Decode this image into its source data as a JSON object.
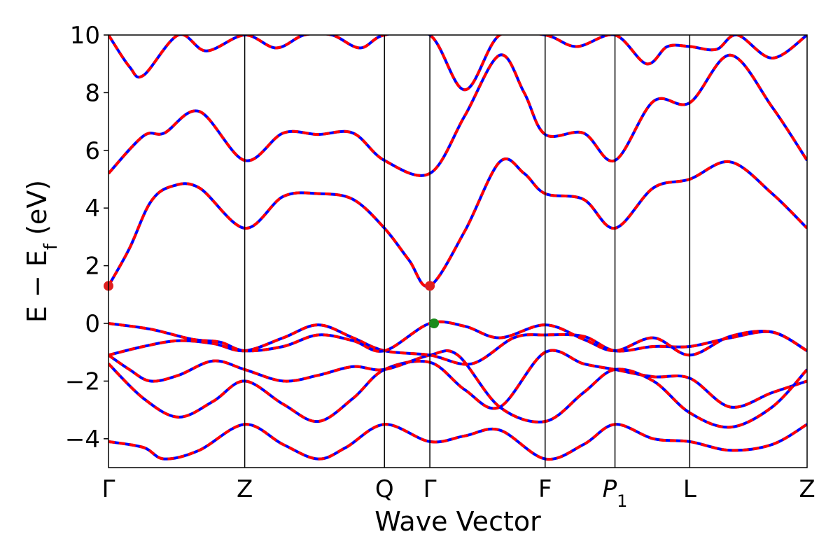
{
  "chart_data": {
    "type": "line",
    "xlabel": "Wave Vector",
    "ylabel": "E − E",
    "ylabel_sub": "f",
    "ylabel_unit": " (eV)",
    "ylim": [
      -5,
      10
    ],
    "yticks": [
      -4,
      -2,
      0,
      2,
      4,
      6,
      8,
      10
    ],
    "ytick_labels": [
      "−4",
      "−2",
      "0",
      "2",
      "4",
      "6",
      "8",
      "10"
    ],
    "kpoints": [
      {
        "label": "Γ",
        "x": 0.0
      },
      {
        "label": "Z",
        "x": 1.95
      },
      {
        "label": "Q",
        "x": 3.95
      },
      {
        "label": "Γ",
        "x": 4.6
      },
      {
        "label": "F",
        "x": 6.25
      },
      {
        "label": "P",
        "sub": "1",
        "x": 7.25
      },
      {
        "label": "L",
        "x": 8.32
      },
      {
        "label": "Z",
        "x": 10.0
      }
    ],
    "xlim": [
      0,
      10
    ],
    "colors": {
      "primary": "#ff0000",
      "overlay": "#0000ff",
      "cbm_marker": "#e02020",
      "vbm_marker": "#1a8a1a"
    },
    "series": [
      {
        "x": [
          0,
          0.5,
          0.8,
          1.3,
          1.95,
          2.5,
          3.0,
          3.4,
          3.95,
          4.6,
          5.1,
          5.6,
          6.25,
          6.8,
          7.25,
          7.8,
          8.32,
          8.9,
          9.5,
          10
        ],
        "y": [
          -4.1,
          -4.3,
          -4.7,
          -4.4,
          -3.5,
          -4.2,
          -4.7,
          -4.3,
          -3.5,
          -4.1,
          -3.9,
          -3.7,
          -4.7,
          -4.2,
          -3.5,
          -4.0,
          -4.1,
          -4.4,
          -4.2,
          -3.5
        ]
      },
      {
        "x": [
          0,
          0.5,
          1.0,
          1.5,
          1.95,
          2.5,
          3.0,
          3.5,
          3.95,
          4.6,
          5.1,
          5.6,
          6.25,
          6.8,
          7.25,
          7.8,
          8.32,
          8.9,
          9.5,
          10
        ],
        "y": [
          -1.4,
          -2.6,
          -3.25,
          -2.7,
          -2.0,
          -2.8,
          -3.4,
          -2.6,
          -1.6,
          -1.35,
          -2.3,
          -2.9,
          -1.0,
          -1.4,
          -1.6,
          -1.85,
          -1.9,
          -2.9,
          -2.4,
          -2.0
        ]
      },
      {
        "x": [
          0,
          0.3,
          0.6,
          1.0,
          1.5,
          1.95,
          2.5,
          3.0,
          3.5,
          3.95,
          4.6,
          5.0,
          5.6,
          6.25,
          6.8,
          7.25,
          7.8,
          8.32,
          8.9,
          9.5,
          10
        ],
        "y": [
          -1.1,
          -1.6,
          -2.0,
          -1.8,
          -1.3,
          -1.6,
          -2.0,
          -1.8,
          -1.5,
          -1.6,
          -1.1,
          -1.1,
          -2.9,
          -3.4,
          -2.4,
          -1.6,
          -2.0,
          -3.1,
          -3.6,
          -2.9,
          -1.6
        ]
      },
      {
        "x": [
          0,
          0.5,
          1.0,
          1.5,
          1.95,
          2.5,
          3.0,
          3.5,
          3.95,
          4.6,
          5.2,
          5.8,
          6.25,
          6.8,
          7.25,
          7.8,
          8.32,
          8.9,
          9.5,
          10
        ],
        "y": [
          -1.1,
          -0.8,
          -0.6,
          -0.7,
          -0.95,
          -0.5,
          -0.05,
          -0.5,
          -0.95,
          -1.1,
          -1.4,
          -0.5,
          -0.4,
          -0.45,
          -0.95,
          -0.8,
          -0.8,
          -0.5,
          -0.3,
          -0.95
        ]
      },
      {
        "x": [
          0,
          0.6,
          1.2,
          1.6,
          1.95,
          2.5,
          3.0,
          3.5,
          3.95,
          4.6,
          5.1,
          5.6,
          6.25,
          6.8,
          7.25,
          7.8,
          8.32,
          8.9,
          9.5,
          10
        ],
        "y": [
          0.0,
          -0.2,
          -0.55,
          -0.65,
          -0.95,
          -0.8,
          -0.4,
          -0.6,
          -0.95,
          0.0,
          -0.1,
          -0.5,
          -0.05,
          -0.55,
          -0.95,
          -0.5,
          -1.1,
          -0.45,
          -0.3,
          -0.95
        ]
      },
      {
        "x": [
          0,
          0.3,
          0.6,
          0.9,
          1.3,
          1.95,
          2.5,
          3.0,
          3.5,
          3.95,
          4.3,
          4.6,
          5.1,
          5.6,
          5.95,
          6.25,
          6.8,
          7.25,
          7.8,
          8.32,
          8.9,
          9.5,
          10
        ],
        "y": [
          1.3,
          2.6,
          4.2,
          4.75,
          4.7,
          3.3,
          4.4,
          4.5,
          4.3,
          3.3,
          2.2,
          1.3,
          3.2,
          5.6,
          5.2,
          4.5,
          4.3,
          3.3,
          4.7,
          5.0,
          5.6,
          4.5,
          3.3
        ]
      },
      {
        "x": [
          0,
          0.5,
          0.8,
          1.3,
          1.95,
          2.5,
          3.0,
          3.5,
          3.95,
          4.6,
          5.1,
          5.6,
          5.95,
          6.25,
          6.8,
          7.25,
          7.8,
          8.32,
          8.9,
          9.5,
          10
        ],
        "y": [
          5.2,
          6.5,
          6.6,
          7.35,
          5.65,
          6.6,
          6.55,
          6.6,
          5.65,
          5.2,
          7.2,
          9.3,
          8.0,
          6.55,
          6.6,
          5.65,
          7.7,
          7.65,
          9.3,
          7.5,
          5.65
        ]
      },
      {
        "x": [
          0,
          0.3,
          0.5,
          1.0,
          1.4,
          1.95,
          2.4,
          2.8,
          3.2,
          3.6,
          3.95,
          4.6,
          5.1,
          5.6,
          6.25,
          6.7,
          7.25,
          7.7,
          8.0,
          8.32,
          8.7,
          9.0,
          9.5,
          10
        ],
        "y": [
          10.0,
          8.9,
          8.6,
          10.0,
          9.45,
          10.0,
          9.55,
          10.0,
          10.0,
          9.55,
          10.0,
          10.0,
          8.1,
          10.0,
          10.0,
          9.6,
          10.0,
          9.0,
          9.6,
          9.6,
          9.5,
          10.0,
          9.2,
          10.0
        ]
      }
    ],
    "markers": [
      {
        "x": 0.0,
        "y": 1.3,
        "color": "cbm_marker"
      },
      {
        "x": 4.6,
        "y": 1.3,
        "color": "cbm_marker"
      },
      {
        "x": 4.66,
        "y": 0.0,
        "color": "vbm_marker"
      }
    ]
  }
}
